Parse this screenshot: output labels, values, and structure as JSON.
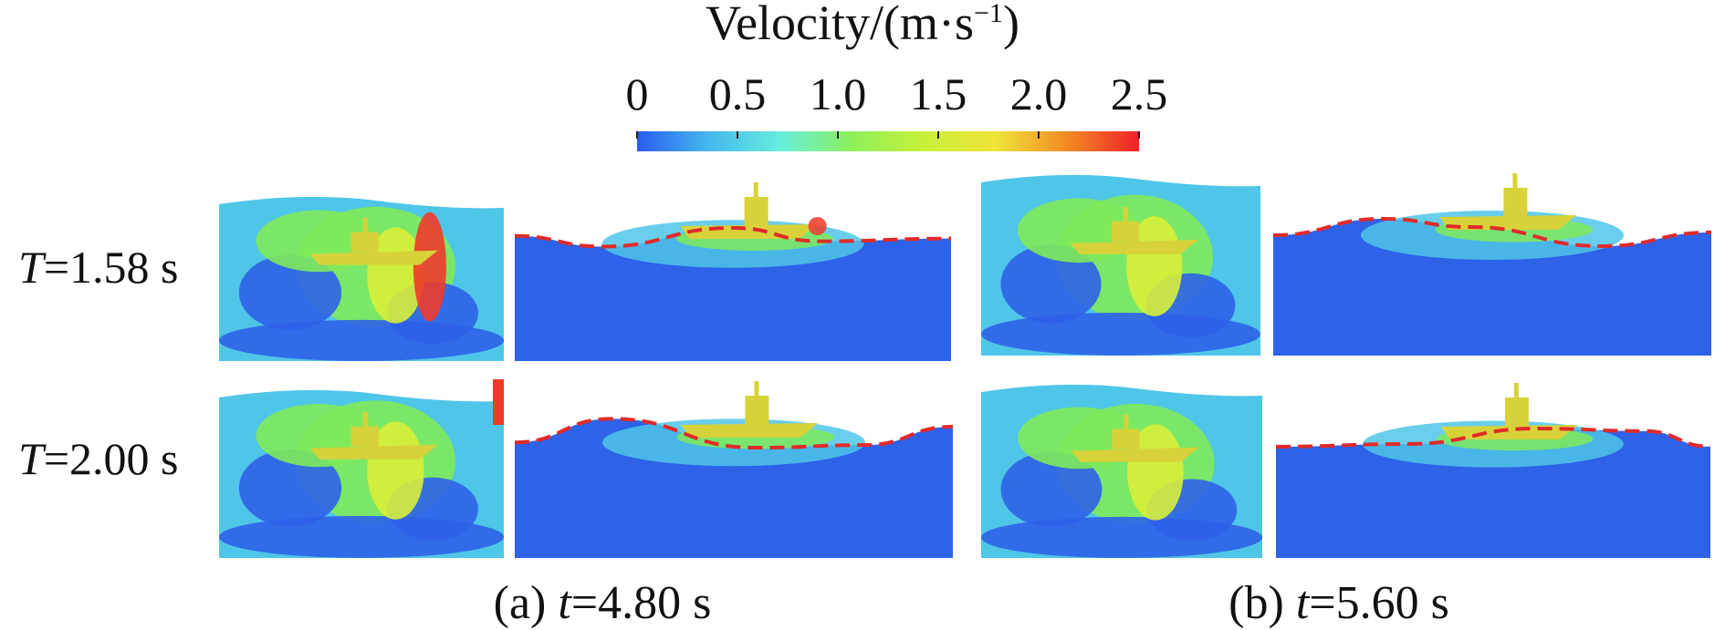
{
  "colorbar": {
    "title": "Velocity/(m·s",
    "title_exp": "−1",
    "title_close": ")",
    "ticks": [
      "0",
      "0.5",
      "1.0",
      "1.5",
      "2.0",
      "2.5"
    ],
    "colors": [
      "#2a5cf0",
      "#46b8ee",
      "#66eedd",
      "#8ef05a",
      "#c8f03a",
      "#f0e43a",
      "#f28a24",
      "#f0202a"
    ]
  },
  "rows": [
    {
      "prefix": "T",
      "value": "=1.58 s"
    },
    {
      "prefix": "T",
      "value": "=2.00 s"
    }
  ],
  "captions": [
    {
      "tag": "(a) ",
      "var": "t",
      "value": "=4.80 s"
    },
    {
      "tag": "(b) ",
      "var": "t",
      "value": "=5.60 s"
    }
  ],
  "panel_colors": {
    "deep": "#2e62e8",
    "mid": "#4fc6e8",
    "green": "#7eea5a",
    "yellow": "#d8ee3a",
    "red": "#f03a2a",
    "ship": "#d8d23a",
    "free_surface": "#e02a2a"
  }
}
